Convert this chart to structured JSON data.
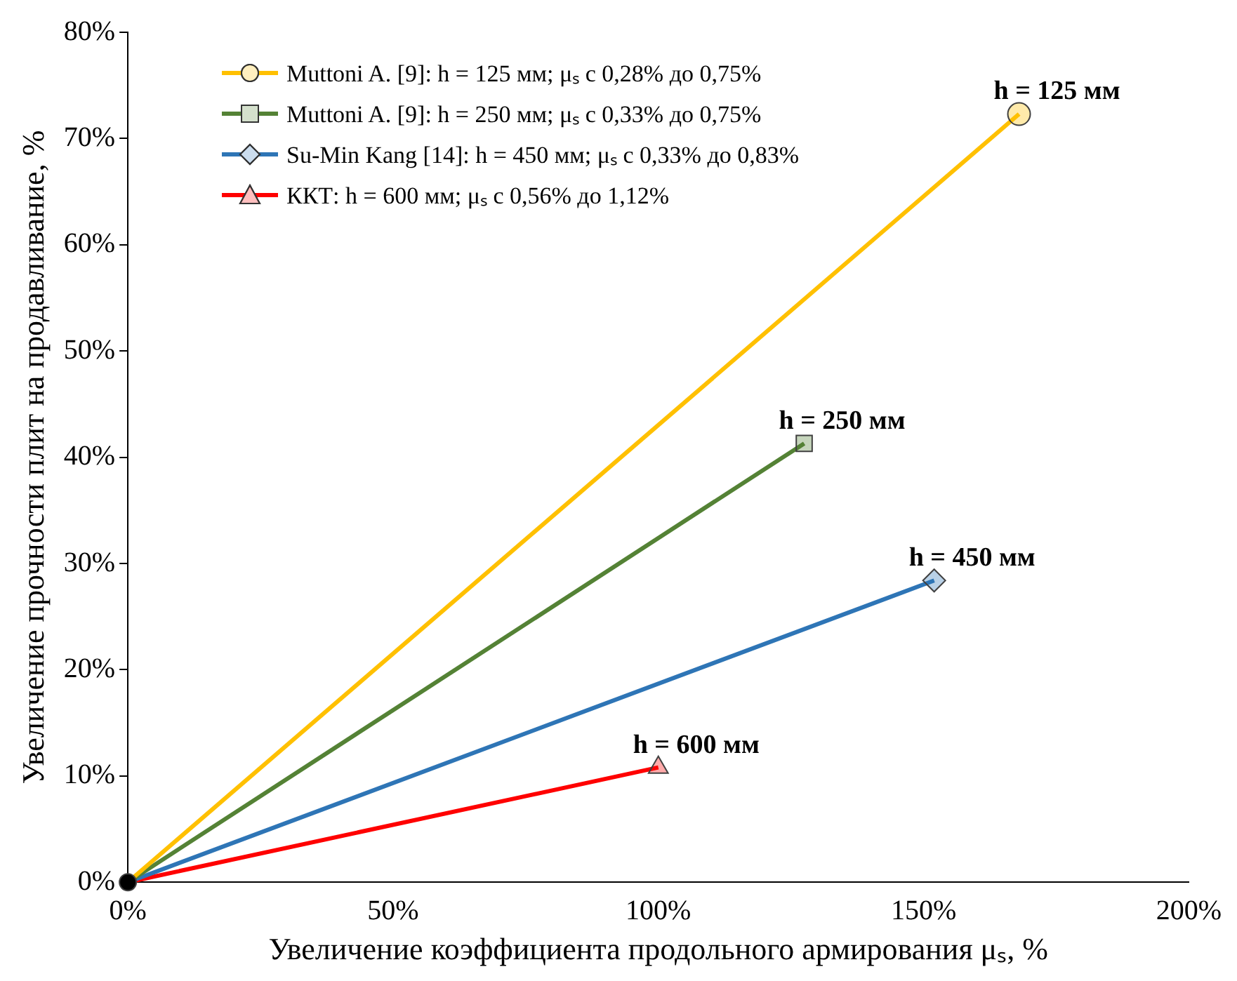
{
  "chart_data": {
    "type": "line",
    "xlabel": "Увеличение коэффициента продольного армирования μₛ, %",
    "ylabel": "Увеличение прочности плит на продавливание, %",
    "series": [
      {
        "name": "Muttoni A. [9]: h = 125 мм; μₛ с 0,28% до 0,75%",
        "color": "#ffc000",
        "marker": "circle",
        "x": [
          0,
          168
        ],
        "values": [
          0,
          72.3
        ]
      },
      {
        "name": "Muttoni A. [9]: h = 250 мм; μₛ с 0,33% до 0,75%",
        "color": "#548235",
        "marker": "square",
        "x": [
          0,
          127.5
        ],
        "values": [
          0,
          41.3
        ]
      },
      {
        "name": "Su-Min Kang [14]: h = 450 мм; μₛ с 0,33% до 0,83%",
        "color": "#2e75b6",
        "marker": "diamond",
        "x": [
          0,
          152
        ],
        "values": [
          0,
          28.4
        ]
      },
      {
        "name": "ККТ: h = 600 мм; μₛ с 0,56% до 1,12%",
        "color": "#ff0000",
        "marker": "triangle",
        "x": [
          0,
          100
        ],
        "values": [
          0,
          10.8
        ]
      },
      {
        "type": "scatter",
        "color": "#000000",
        "marker": "circle",
        "x": [
          0
        ],
        "values": [
          0
        ]
      }
    ],
    "annotations": [
      {
        "text": "h = 125 мм",
        "x": 168,
        "y": 72.3
      },
      {
        "text": "h = 250 мм",
        "x": 127.5,
        "y": 41.3
      },
      {
        "text": "h = 450 мм",
        "x": 152,
        "y": 28.4
      },
      {
        "text": "h = 600 мм",
        "x": 100,
        "y": 10.8
      }
    ],
    "xlim": [
      0,
      200
    ],
    "xticks": [
      {
        "value": 0,
        "label": "0%"
      },
      {
        "value": 50,
        "label": "50%"
      },
      {
        "value": 100,
        "label": "100%"
      },
      {
        "value": 150,
        "label": "150%"
      },
      {
        "value": 200,
        "label": "200%"
      }
    ],
    "ylim": [
      0,
      80
    ],
    "yticks": [
      {
        "value": 0,
        "label": "0%"
      },
      {
        "value": 10,
        "label": "10%"
      },
      {
        "value": 20,
        "label": "20%"
      },
      {
        "value": 30,
        "label": "30%"
      },
      {
        "value": 40,
        "label": "40%"
      },
      {
        "value": 50,
        "label": "50%"
      },
      {
        "value": 60,
        "label": "60%"
      },
      {
        "value": 70,
        "label": "70%"
      },
      {
        "value": 80,
        "label": "80%"
      }
    ],
    "grid": false,
    "legend": "top left"
  }
}
